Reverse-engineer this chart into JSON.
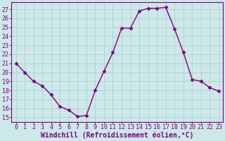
{
  "x": [
    0,
    1,
    2,
    3,
    4,
    5,
    6,
    7,
    8,
    9,
    10,
    11,
    12,
    13,
    14,
    15,
    16,
    17,
    18,
    19,
    20,
    21,
    22,
    23
  ],
  "y": [
    21,
    20,
    19,
    18.5,
    17.5,
    16.2,
    15.8,
    15.1,
    15.2,
    18.0,
    20.1,
    22.2,
    24.9,
    24.9,
    26.8,
    27.1,
    27.1,
    27.2,
    24.8,
    22.2,
    19.2,
    19.0,
    18.3,
    17.9
  ],
  "line_color": "#800080",
  "marker": "D",
  "marker_size": 2.5,
  "bg_color": "#cce8e8",
  "grid_color": "#aacccc",
  "xlabel": "Windchill (Refroidissement éolien,°C)",
  "xlabel_color": "#800080",
  "xlabel_fontsize": 7,
  "tick_color": "#800080",
  "tick_fontsize": 6,
  "ytick_min": 15,
  "ytick_max": 27,
  "xtick_min": 0,
  "xtick_max": 23,
  "ylim": [
    14.5,
    27.8
  ],
  "xlim": [
    -0.5,
    23.5
  ]
}
